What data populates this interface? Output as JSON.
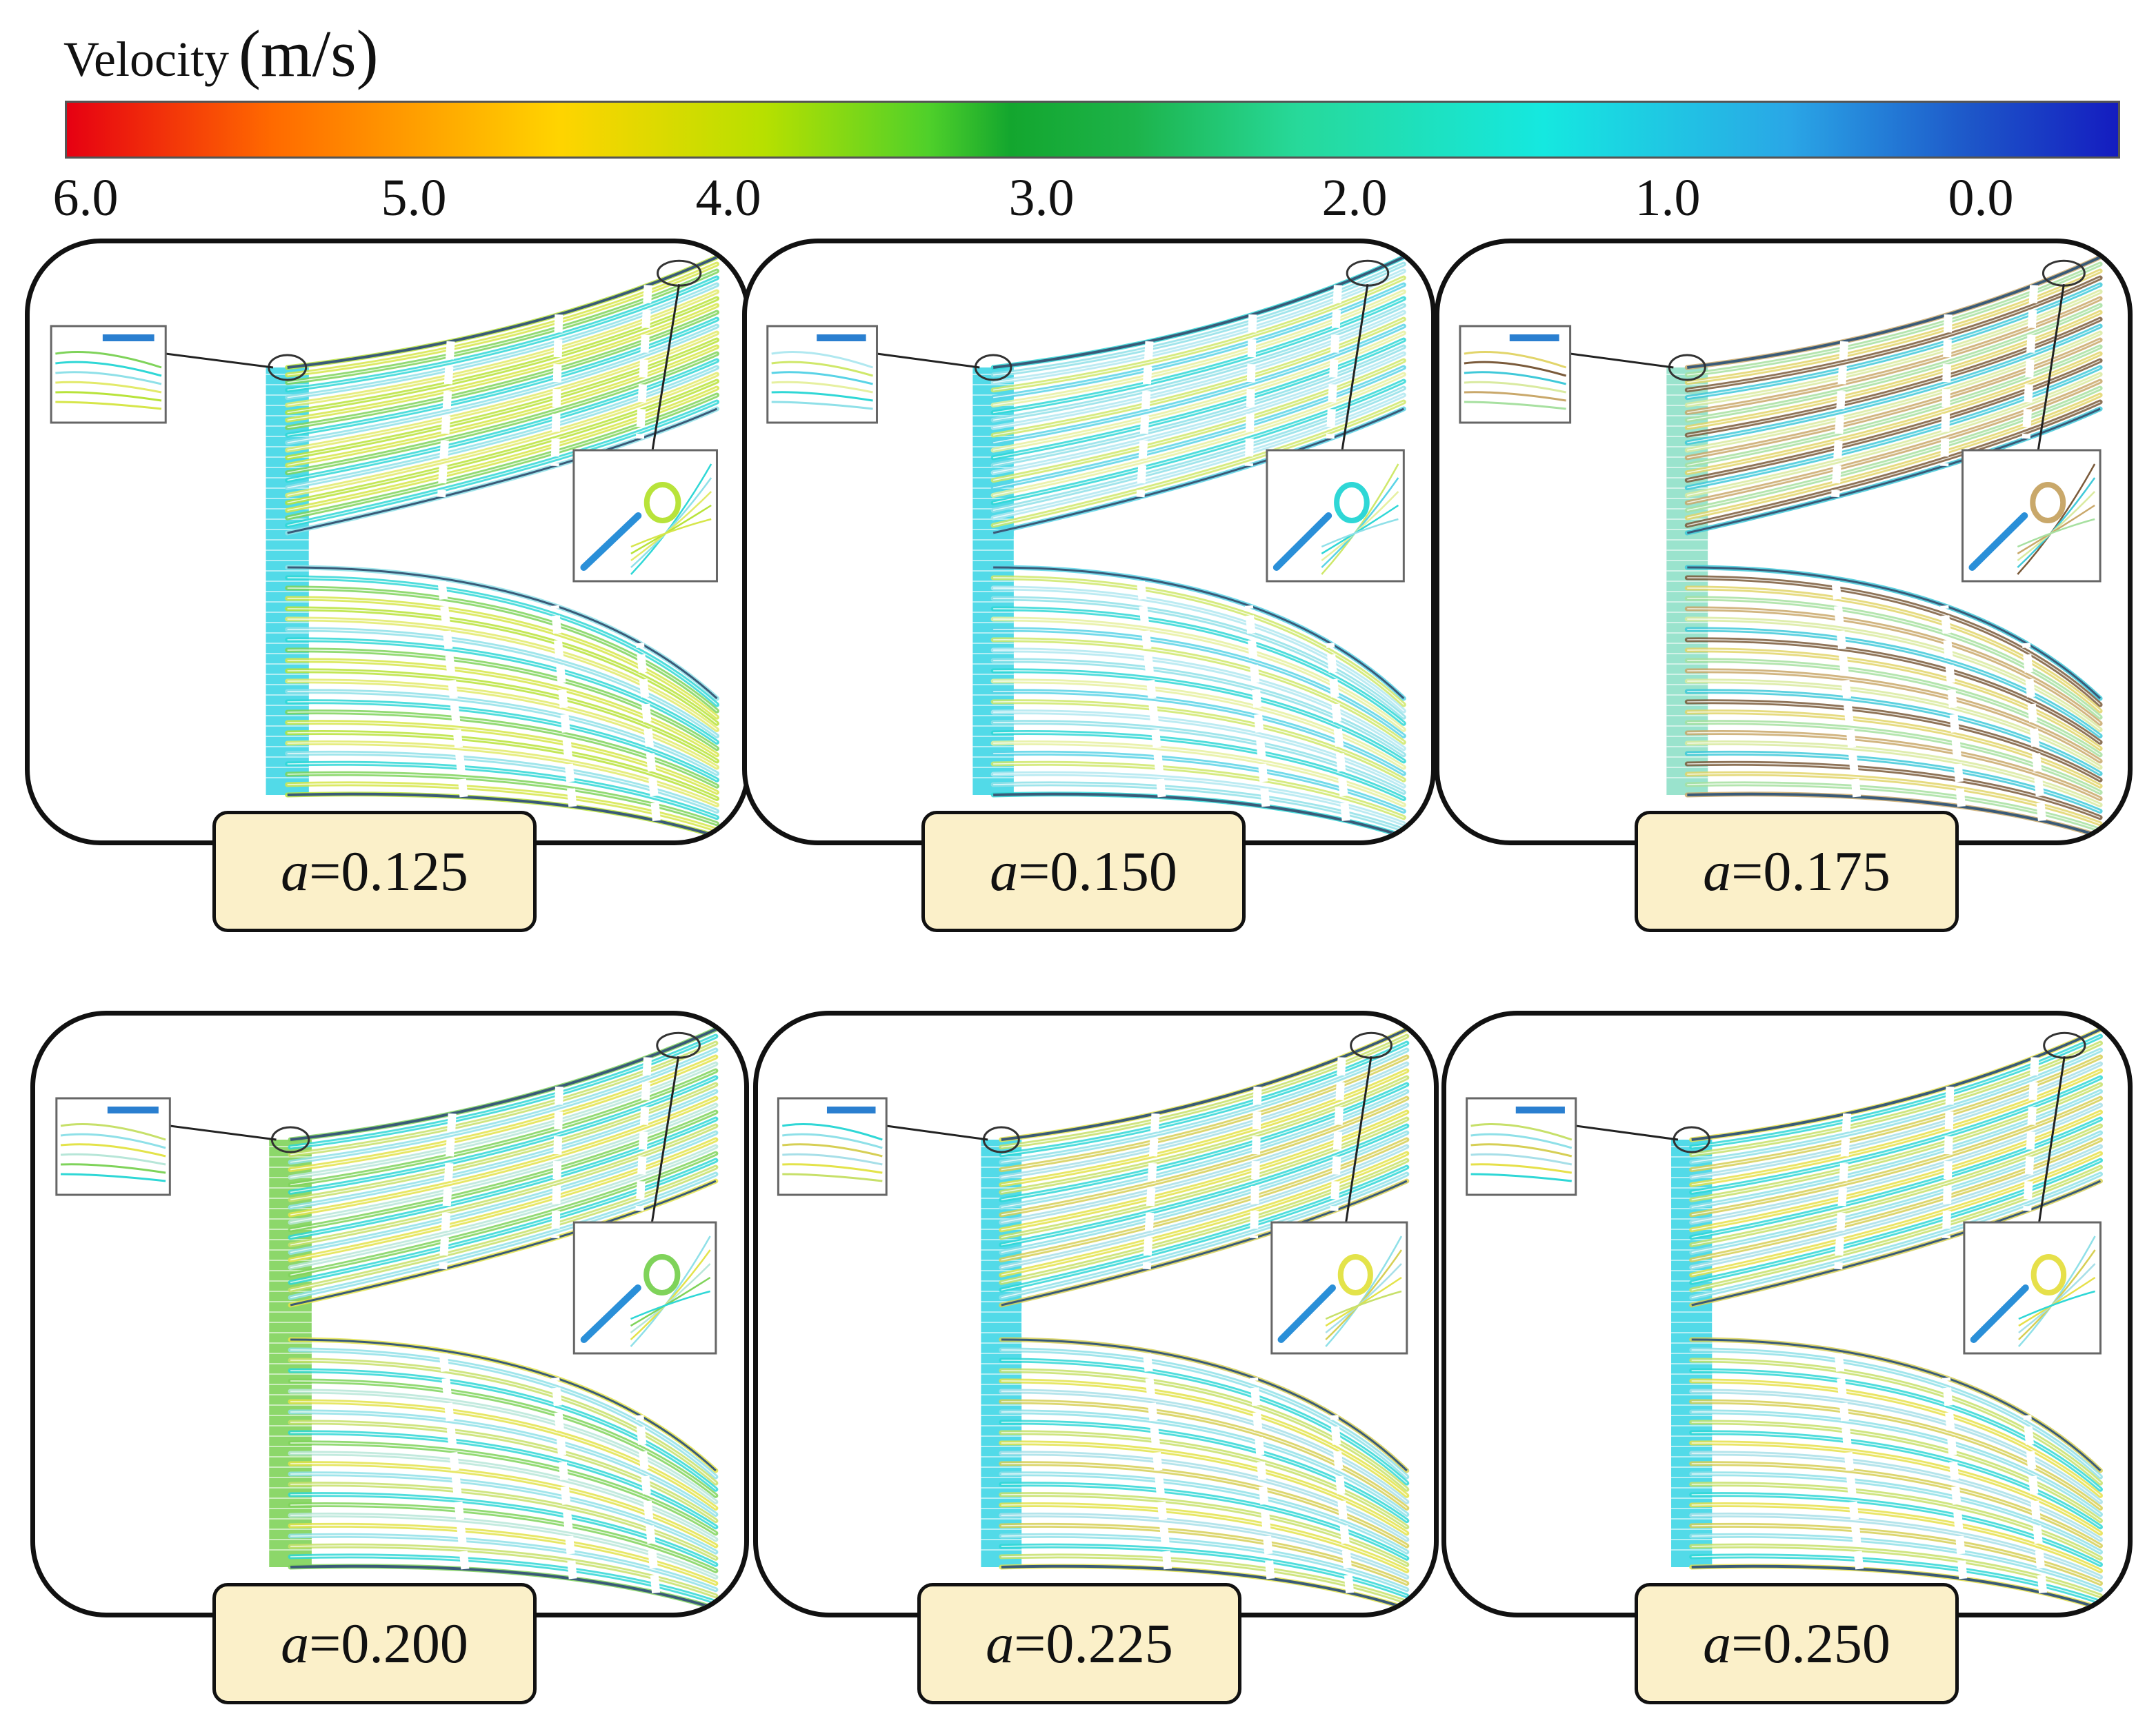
{
  "legend": {
    "title": "Velocity",
    "unit": "(m/s)",
    "ticks": [
      "6.0",
      "5.0",
      "4.0",
      "3.0",
      "2.0",
      "1.0",
      "0.0"
    ],
    "colorscale": [
      "#e60012",
      "#ff6a00",
      "#ffd400",
      "#b7e000",
      "#4fd02a",
      "#13a62e",
      "#27d99a",
      "#15e8e0",
      "#2aa6e6",
      "#1d55c8",
      "#141cc0"
    ]
  },
  "panels": [
    {
      "var": "a",
      "value": "=0.125"
    },
    {
      "var": "a",
      "value": "=0.150"
    },
    {
      "var": "a",
      "value": "=0.175"
    },
    {
      "var": "a",
      "value": "=0.200"
    },
    {
      "var": "a",
      "value": "=0.225"
    },
    {
      "var": "a",
      "value": "=0.250"
    }
  ]
}
